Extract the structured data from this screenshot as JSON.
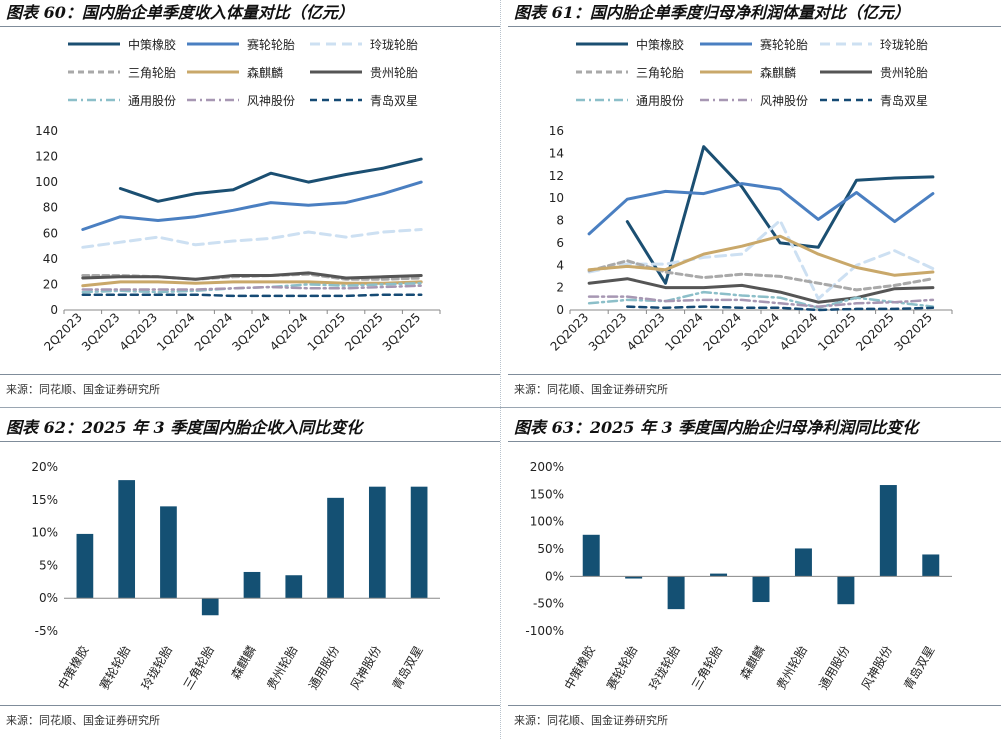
{
  "colors": {
    "navy": "#1b4f72",
    "blue": "#4a7fc1",
    "lightblue": "#cde0f2",
    "gray": "#a9a9a9",
    "tan": "#c9a86a",
    "darkgray": "#555555",
    "teal": "#8cbfc9",
    "mauve": "#a797b3",
    "darknavy": "#154a74",
    "bar": "#145073"
  },
  "series_styles": [
    {
      "color": "#1b4f72",
      "dash": "",
      "width": 3
    },
    {
      "color": "#4a7fc1",
      "dash": "",
      "width": 3
    },
    {
      "color": "#cde0f2",
      "dash": "10,6",
      "width": 3
    },
    {
      "color": "#a9a9a9",
      "dash": "6,4",
      "width": 3
    },
    {
      "color": "#c9a86a",
      "dash": "",
      "width": 3
    },
    {
      "color": "#555555",
      "dash": "",
      "width": 3
    },
    {
      "color": "#8cbfc9",
      "dash": "9,4,2,4",
      "width": 2.5
    },
    {
      "color": "#a797b3",
      "dash": "9,4,2,4",
      "width": 2.5
    },
    {
      "color": "#154a74",
      "dash": "7,5",
      "width": 2.5
    }
  ],
  "panels": {
    "p60": {
      "title": "图表 60：国内胎企单季度收入体量对比（亿元）",
      "source": "来源：同花顺、国金证券研究所"
    },
    "p61": {
      "title": "图表 61：国内胎企单季度归母净利润体量对比（亿元）",
      "source": "来源：同花顺、国金证券研究所"
    },
    "p62": {
      "title": "图表 62：2025 年 3 季度国内胎企收入同比变化",
      "source": "来源：同花顺、国金证券研究所"
    },
    "p63": {
      "title": "图表 63：2025 年 3 季度国内胎企归母净利润同比变化",
      "source": "来源：同花顺、国金证券研究所"
    }
  },
  "legend_labels": [
    "中策橡胶",
    "赛轮轮胎",
    "玲珑轮胎",
    "三角轮胎",
    "森麒麟",
    "贵州轮胎",
    "通用股份",
    "风神股份",
    "青岛双星"
  ],
  "chart_data": [
    {
      "id": "chart60",
      "type": "line",
      "title": "图表 60：国内胎企单季度收入体量对比（亿元）",
      "x": [
        "2Q2023",
        "3Q2023",
        "4Q2023",
        "1Q2024",
        "2Q2024",
        "3Q2024",
        "4Q2024",
        "1Q2025",
        "2Q2025",
        "3Q2025"
      ],
      "ylim": [
        0,
        140
      ],
      "yticks": [
        "0",
        "20",
        "40",
        "60",
        "80",
        "100",
        "120",
        "140"
      ],
      "series": [
        {
          "name": "中策橡胶",
          "values": [
            null,
            95,
            85,
            91,
            94,
            107,
            100,
            106,
            111,
            118
          ]
        },
        {
          "name": "赛轮轮胎",
          "values": [
            63,
            73,
            70,
            73,
            78,
            84,
            82,
            84,
            91,
            100
          ]
        },
        {
          "name": "玲珑轮胎",
          "values": [
            49,
            53,
            57,
            51,
            54,
            56,
            61,
            57,
            61,
            63
          ]
        },
        {
          "name": "三角轮胎",
          "values": [
            27,
            27,
            26,
            24,
            26,
            27,
            28,
            24,
            24,
            25
          ]
        },
        {
          "name": "森麒麟",
          "values": [
            19,
            22,
            22,
            21,
            22,
            22,
            22,
            21,
            21,
            22
          ]
        },
        {
          "name": "贵州轮胎",
          "values": [
            25,
            26,
            26,
            24,
            27,
            27,
            29,
            25,
            26,
            27
          ]
        },
        {
          "name": "通用股份",
          "values": [
            14,
            15,
            14,
            15,
            17,
            18,
            20,
            19,
            20,
            21
          ]
        },
        {
          "name": "风神股份",
          "values": [
            16,
            16,
            16,
            16,
            17,
            18,
            17,
            17,
            18,
            19
          ]
        },
        {
          "name": "青岛双星",
          "values": [
            12,
            12,
            12,
            12,
            11,
            11,
            11,
            11,
            12,
            12
          ]
        }
      ]
    },
    {
      "id": "chart61",
      "type": "line",
      "title": "图表 61：国内胎企单季度归母净利润体量对比（亿元）",
      "x": [
        "2Q2023",
        "3Q2023",
        "4Q2023",
        "1Q2024",
        "2Q2024",
        "3Q2024",
        "4Q2024",
        "1Q2025",
        "2Q2025",
        "3Q2025"
      ],
      "ylim": [
        0,
        16
      ],
      "yticks": [
        "0",
        "2",
        "4",
        "6",
        "8",
        "10",
        "12",
        "14",
        "16"
      ],
      "series": [
        {
          "name": "中策橡胶",
          "values": [
            null,
            7.9,
            2.4,
            14.6,
            11.0,
            6.0,
            5.6,
            11.6,
            11.8,
            11.9
          ]
        },
        {
          "name": "赛轮轮胎",
          "values": [
            6.8,
            9.9,
            10.6,
            10.4,
            11.3,
            10.8,
            8.1,
            10.5,
            7.9,
            10.4
          ]
        },
        {
          "name": "玲珑轮胎",
          "values": [
            3.4,
            4.1,
            4.1,
            4.7,
            5.0,
            8.0,
            1.0,
            4.0,
            5.3,
            3.7
          ]
        },
        {
          "name": "三角轮胎",
          "values": [
            3.5,
            4.4,
            3.4,
            2.9,
            3.2,
            3.0,
            2.4,
            1.8,
            2.2,
            2.8
          ]
        },
        {
          "name": "森麒麟",
          "values": [
            3.6,
            3.9,
            3.6,
            5.0,
            5.7,
            6.6,
            5.0,
            3.8,
            3.1,
            3.4
          ]
        },
        {
          "name": "贵州轮胎",
          "values": [
            2.4,
            2.8,
            2.0,
            2.0,
            2.2,
            1.6,
            0.7,
            1.1,
            1.9,
            2.0
          ]
        },
        {
          "name": "通用股份",
          "values": [
            0.6,
            0.9,
            0.8,
            1.6,
            1.3,
            1.1,
            0.2,
            1.1,
            0.7,
            0.3
          ]
        },
        {
          "name": "风神股份",
          "values": [
            1.2,
            1.2,
            0.8,
            0.9,
            0.9,
            0.6,
            0.3,
            0.6,
            0.7,
            0.9
          ]
        },
        {
          "name": "青岛双星",
          "values": [
            null,
            0.3,
            0.2,
            0.3,
            0.2,
            0.2,
            0.0,
            0.1,
            0.1,
            0.2
          ]
        }
      ]
    },
    {
      "id": "chart62",
      "type": "bar",
      "title": "图表 62：2025 年 3 季度国内胎企收入同比变化",
      "categories": [
        "中策橡胶",
        "赛轮轮胎",
        "玲珑轮胎",
        "三角轮胎",
        "森麒麟",
        "贵州轮胎",
        "通用股份",
        "风神股份",
        "青岛双星"
      ],
      "values": [
        9.8,
        18.0,
        14.0,
        -2.6,
        4.0,
        3.5,
        15.3,
        17.0,
        17.0
      ],
      "ylim": [
        -5,
        20
      ],
      "yticks": [
        "-5%",
        "0%",
        "5%",
        "10%",
        "15%",
        "20%"
      ],
      "unit": "%"
    },
    {
      "id": "chart63",
      "type": "bar",
      "title": "图表 63：2025 年 3 季度国内胎企归母净利润同比变化",
      "categories": [
        "中策橡胶",
        "赛轮轮胎",
        "玲珑轮胎",
        "三角轮胎",
        "森麒麟",
        "贵州轮胎",
        "通用股份",
        "风神股份",
        "青岛双星"
      ],
      "values": [
        76,
        -4,
        -60,
        5,
        -47,
        51,
        -51,
        167,
        40
      ],
      "ylim": [
        -100,
        200
      ],
      "yticks": [
        "-100%",
        "-50%",
        "0%",
        "50%",
        "100%",
        "150%",
        "200%"
      ],
      "unit": "%"
    }
  ]
}
